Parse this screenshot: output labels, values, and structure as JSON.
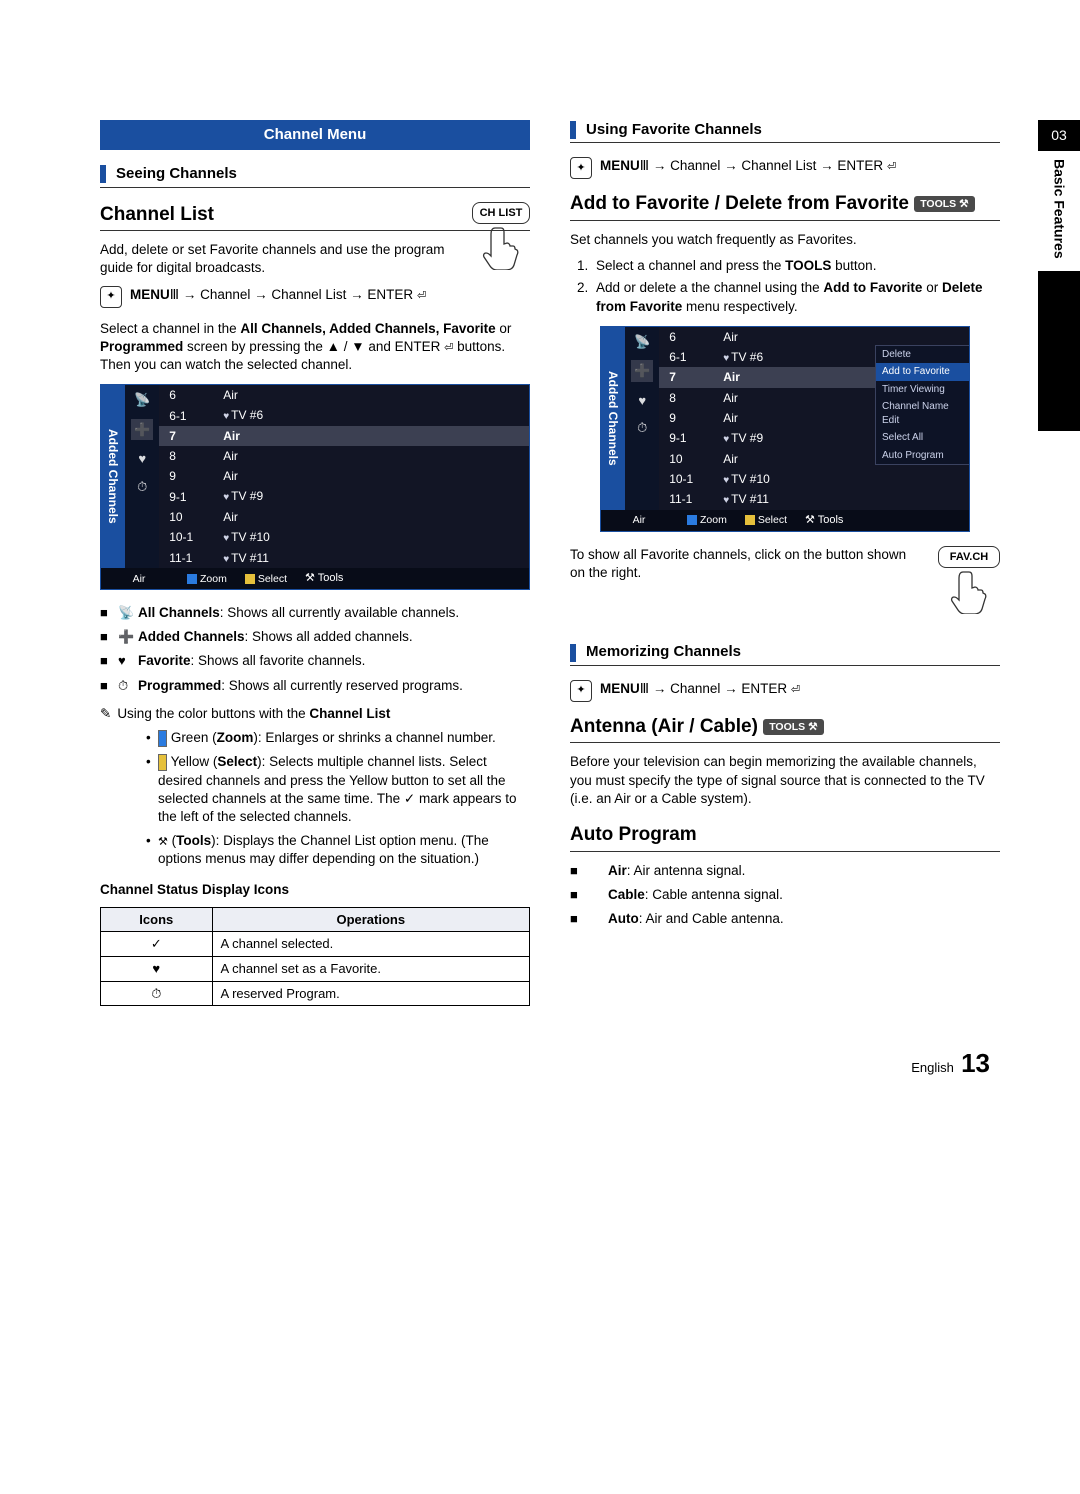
{
  "sidebar": {
    "chapter": "03",
    "title": "Basic Features"
  },
  "footer": {
    "lang": "English",
    "page": "13"
  },
  "left": {
    "banner": "Channel Menu",
    "seeing": "Seeing Channels",
    "h2_channel_list": "Channel List",
    "intro": "Add, delete or set Favorite channels and use the program guide for digital broadcasts.",
    "chlist_btn": "CH LIST",
    "menu_label": "MENU",
    "menu_path": " → Channel → Channel List → ENTER",
    "select_para": "Select a channel in the ",
    "select_bold": "All Channels, Added Channels, Favorite",
    "select_para2": " or ",
    "select_bold2": "Programmed",
    "select_para3": " screen by pressing the ▲ / ▼ and ENTER",
    "select_para4": " buttons. Then you can watch the selected channel.",
    "panel_side": "Added Channels",
    "panel_rows": [
      {
        "num": "6",
        "name": "Air"
      },
      {
        "num": "6-1",
        "name": "TV #6",
        "heart": true
      },
      {
        "num": "7",
        "name": "Air",
        "hi": true
      },
      {
        "num": "8",
        "name": "Air"
      },
      {
        "num": "9",
        "name": "Air"
      },
      {
        "num": "9-1",
        "name": "TV #9",
        "heart": true
      },
      {
        "num": "10",
        "name": "Air"
      },
      {
        "num": "10-1",
        "name": "TV #10",
        "heart": true
      },
      {
        "num": "11-1",
        "name": "TV #11",
        "heart": true
      }
    ],
    "panel_src": "Air",
    "panel_zoom": "Zoom",
    "panel_select": "Select",
    "panel_tools": "Tools",
    "bul": [
      {
        "icon": "📡",
        "b": "All Channels",
        "t": ": Shows all currently available channels."
      },
      {
        "icon": "➕",
        "b": "Added Channels",
        "t": ": Shows all added channels."
      },
      {
        "icon": "♥",
        "b": "Favorite",
        "t": ": Shows all favorite channels."
      },
      {
        "icon": "⏱",
        "b": "Programmed",
        "t": ": Shows all currently reserved programs."
      }
    ],
    "note": "Using the color buttons with the ",
    "note_b": "Channel List",
    "dash": [
      {
        "key": "Green",
        "paren": "Zoom",
        "t": ": Enlarges or shrinks a channel number.",
        "color": "#2a7be0"
      },
      {
        "key": "Yellow",
        "paren": "Select",
        "t": ": Selects multiple channel lists. Select desired channels and press the Yellow button to set all the selected channels at the same time. The ✓ mark appears to the left of the selected channels.",
        "color": "#e5c03b"
      },
      {
        "key": "",
        "paren": "Tools",
        "t": ": Displays the Channel List option menu. (The options menus may differ depending on the situation.)",
        "tools": true
      }
    ],
    "icons_title": "Channel Status Display Icons",
    "tbl_h1": "Icons",
    "tbl_h2": "Operations",
    "tbl": [
      {
        "i": "✓",
        "t": "A channel selected."
      },
      {
        "i": "♥",
        "t": "A channel set as a Favorite."
      },
      {
        "i": "⏱",
        "t": "A reserved Program."
      }
    ]
  },
  "right": {
    "using_fav": "Using Favorite Channels",
    "menu_label": "MENU",
    "path1": " → Channel → Channel List → ENTER",
    "h2_addfav": "Add to Favorite / Delete from Favorite",
    "tools_badge": "TOOLS",
    "setline": "Set channels you watch frequently as Favorites.",
    "ol": [
      "Select a channel and press the TOOLS button.",
      "Add or delete a the channel using the Add to Favorite or Delete from Favorite menu respectively."
    ],
    "panel_side": "Added Channels",
    "panel_rows": [
      {
        "num": "6",
        "name": "Air"
      },
      {
        "num": "6-1",
        "name": "TV #6",
        "heart": true
      },
      {
        "num": "7",
        "name": "Air",
        "hi": true
      },
      {
        "num": "8",
        "name": "Air"
      },
      {
        "num": "9",
        "name": "Air"
      },
      {
        "num": "9-1",
        "name": "TV #9",
        "heart": true
      },
      {
        "num": "10",
        "name": "Air"
      },
      {
        "num": "10-1",
        "name": "TV #10",
        "heart": true
      },
      {
        "num": "11-1",
        "name": "TV #11",
        "heart": true
      }
    ],
    "ctx": [
      "Delete",
      "Add to Favorite",
      "Timer Viewing",
      "Channel Name Edit",
      "Select All",
      "Auto Program"
    ],
    "panel_src": "Air",
    "panel_zoom": "Zoom",
    "panel_select": "Select",
    "panel_tools": "Tools",
    "fav_note": "To show all Favorite channels, click on the button shown on the right.",
    "favch_btn": "FAV.CH",
    "memorizing": "Memorizing Channels",
    "path2": " → Channel → ENTER",
    "h2_antenna": "Antenna (Air / Cable)",
    "antenna_para": "Before your television can begin memorizing the available channels, you must specify the type of signal source that is connected to the TV (i.e. an Air or a Cable system).",
    "h2_auto": "Auto Program",
    "auto_items": [
      {
        "b": "Air",
        "t": ": Air antenna signal."
      },
      {
        "b": "Cable",
        "t": ": Cable antenna signal."
      },
      {
        "b": "Auto",
        "t": ": Air and Cable antenna."
      }
    ]
  }
}
